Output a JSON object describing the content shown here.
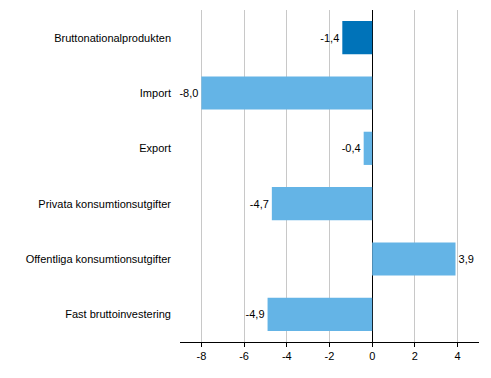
{
  "chart_data": {
    "type": "bar",
    "orientation": "horizontal",
    "categories": [
      "Bruttonationalprodukten",
      "Import",
      "Export",
      "Privata konsumtionsutgifter",
      "Offentliga konsumtionsutgifter",
      "Fast bruttoinvestering"
    ],
    "values": [
      -1.4,
      -8.0,
      -0.4,
      -4.7,
      3.9,
      -4.9
    ],
    "value_labels": [
      "-1,4",
      "-8,0",
      "-0,4",
      "-4,7",
      "3,9",
      "-4,9"
    ],
    "colors": [
      "#0073b9",
      "#64b4e6",
      "#64b4e6",
      "#64b4e6",
      "#64b4e6",
      "#64b4e6"
    ],
    "xlim": [
      -9,
      5
    ],
    "xticks": [
      -8,
      -6,
      -4,
      -2,
      0,
      2,
      4
    ],
    "grid": true,
    "data_labels": true
  }
}
